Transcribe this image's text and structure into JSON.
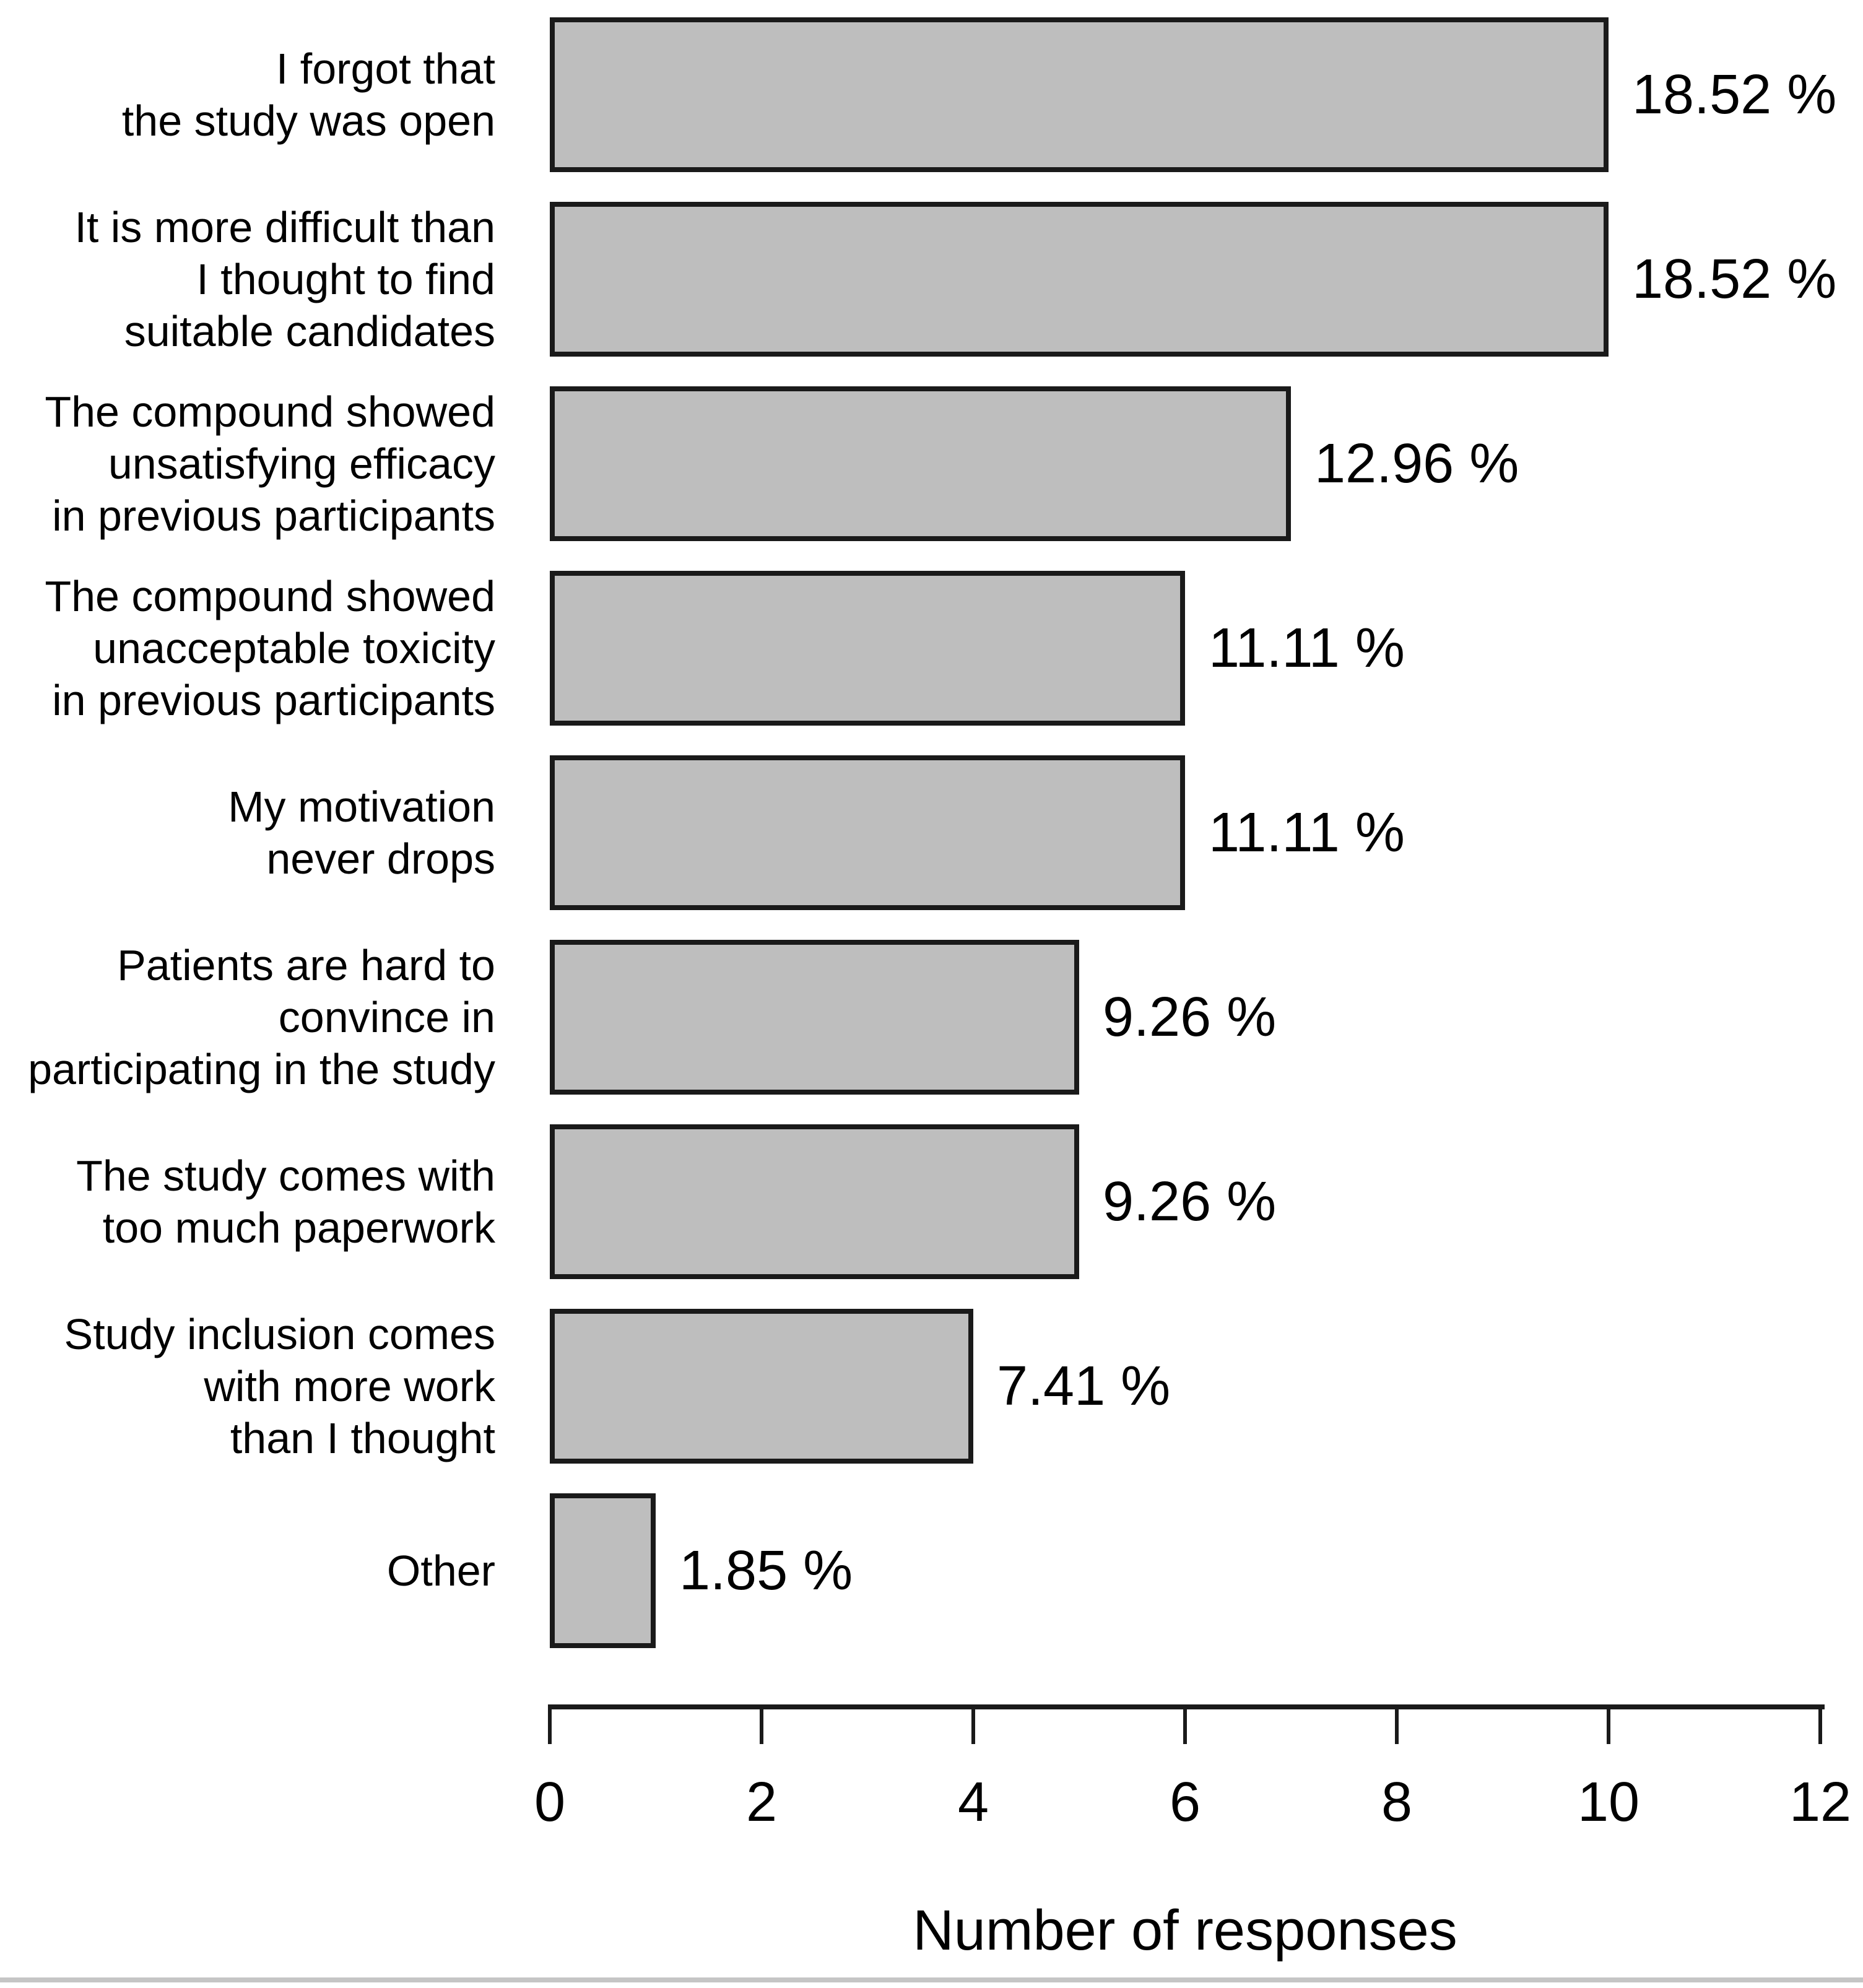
{
  "chart_data": {
    "type": "bar",
    "orientation": "horizontal",
    "title": "",
    "xlabel": "Number of responses",
    "ylabel": "",
    "xlim": [
      0,
      12
    ],
    "xticks": [
      0,
      2,
      4,
      6,
      8,
      10,
      12
    ],
    "grid": false,
    "legend": false,
    "categories": [
      "I forgot that\nthe study was open",
      "It is more difficult than\nI thought to find\nsuitable candidates",
      "The compound showed\nunsatisfying efficacy\nin previous participants",
      "The compound showed\nunacceptable toxicity\nin previous participants",
      "My motivation\nnever drops",
      "Patients are hard to\nconvince in\nparticipating in the study",
      "The study comes with\ntoo much paperwork",
      "Study inclusion comes\nwith more work\nthan I thought",
      "Other"
    ],
    "values": [
      10,
      10,
      7,
      6,
      6,
      5,
      5,
      4,
      1
    ],
    "value_labels": [
      "18.52 %",
      "18.52 %",
      "12.96 %",
      "11.11 %",
      "11.11 %",
      "9.26 %",
      "9.26 %",
      "7.41 %",
      "1.85 %"
    ],
    "colors": {
      "bar_fill": "#bebebe",
      "bar_border": "#1a1a1a",
      "axis": "#1a1a1a",
      "text": "#000000"
    }
  }
}
